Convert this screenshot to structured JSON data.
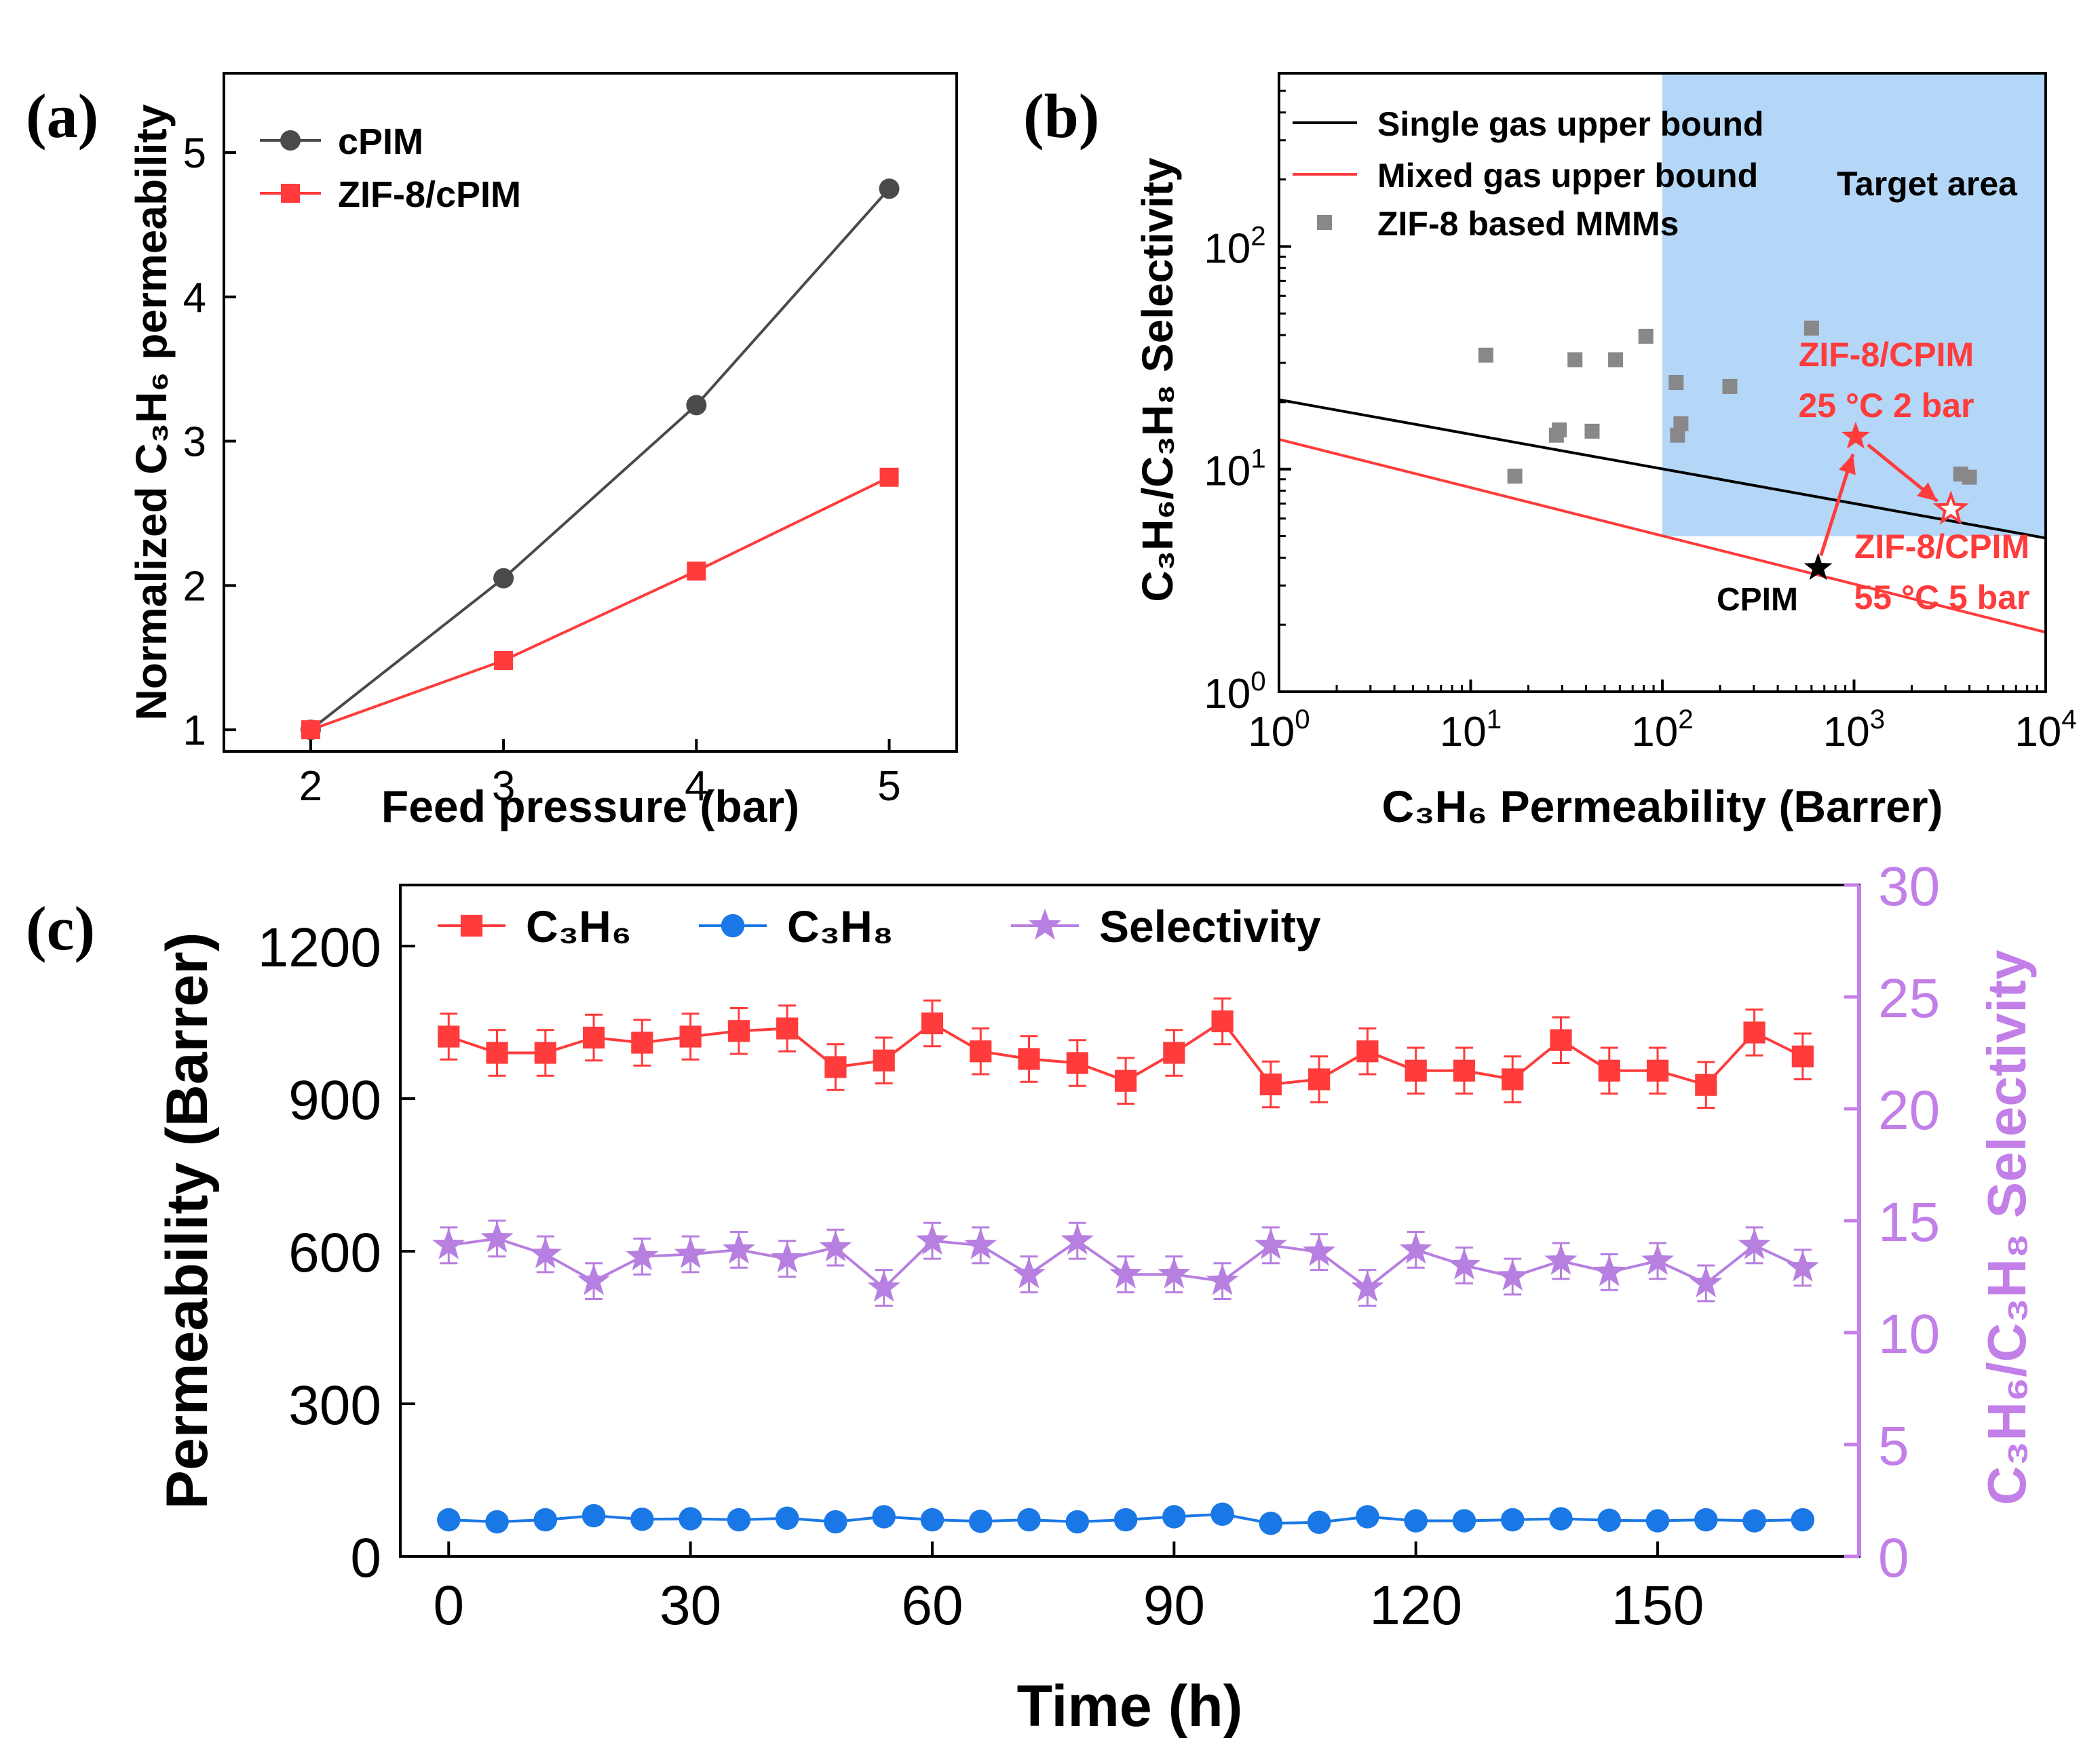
{
  "chart_data": [
    {
      "panel": "(a)",
      "type": "line",
      "xlabel": "Feed pressure (bar)",
      "ylabel": "Normalized C₃H₆ permeability",
      "xlim": [
        1.55,
        5.35
      ],
      "ylim": [
        0.85,
        5.55
      ],
      "x_ticks": [
        2,
        3,
        4,
        5
      ],
      "y_ticks": [
        1,
        2,
        3,
        4,
        5
      ],
      "legend": "top-left",
      "series": [
        {
          "name": "cPIM",
          "x": [
            2,
            3,
            4,
            5
          ],
          "values": [
            1.0,
            2.05,
            3.25,
            4.75
          ],
          "color": "#4a4a4a",
          "marker": "circle"
        },
        {
          "name": "ZIF-8/cPIM",
          "x": [
            2,
            3,
            4,
            5
          ],
          "values": [
            1.0,
            1.48,
            2.1,
            2.75
          ],
          "color": "#ff3b3b",
          "marker": "square"
        }
      ]
    },
    {
      "panel": "(b)",
      "type": "scatter",
      "xscale": "log",
      "yscale": "log",
      "xlabel": "C₃H₆ Permeability (Barrer)",
      "ylabel": "C₃H₆/C₃H₈ Selectivity",
      "xlim": [
        1,
        10000
      ],
      "ylim": [
        1,
        600
      ],
      "x_ticks": [
        {
          "base": "10",
          "exp": "0"
        },
        {
          "base": "10",
          "exp": "1"
        },
        {
          "base": "10",
          "exp": "2"
        },
        {
          "base": "10",
          "exp": "3"
        },
        {
          "base": "10",
          "exp": "4"
        }
      ],
      "y_ticks": [
        {
          "base": "10",
          "exp": "0"
        },
        {
          "base": "10",
          "exp": "1"
        },
        {
          "base": "10",
          "exp": "2"
        }
      ],
      "legend": "top-left",
      "legend_entries": [
        "Single gas upper bound",
        "Mixed gas upper bound",
        "ZIF-8 based MMMs"
      ],
      "target_area": {
        "label": "Target area",
        "x_from": 100,
        "x_to": 10000,
        "y_from": 5,
        "y_to": 600,
        "color": "#b4d6f7"
      },
      "upper_bounds": [
        {
          "name": "Single gas upper bound",
          "color": "#000000",
          "points": [
            [
              1,
              20.5
            ],
            [
              10000,
              4.9
            ]
          ]
        },
        {
          "name": "Mixed gas upper bound",
          "color": "#ff3b3b",
          "points": [
            [
              1,
              13.6
            ],
            [
              10000,
              1.85
            ]
          ]
        }
      ],
      "mmm_points": {
        "name": "ZIF-8 based MMMs",
        "color": "#888888",
        "x": [
          12,
          17,
          28,
          29,
          35,
          43,
          57,
          82,
          118,
          120,
          125,
          225,
          600,
          3600,
          4000
        ],
        "y": [
          32.5,
          9.3,
          14.2,
          15.0,
          31.0,
          14.8,
          31.0,
          39.5,
          24.5,
          14.2,
          16.0,
          23.5,
          43.0,
          9.5,
          9.2
        ]
      },
      "annotations": [
        {
          "text": "CPIM",
          "x": 650,
          "y": 3.6,
          "color": "#000000",
          "marker": "filled-star"
        },
        {
          "text": [
            "ZIF-8/CPIM",
            "25 °C 2 bar"
          ],
          "x": 1020,
          "y": 14.0,
          "color": "#ff3b3b",
          "marker": "filled-star"
        },
        {
          "text": [
            "ZIF-8/CPIM",
            "55 °C 5 bar"
          ],
          "x": 3200,
          "y": 6.6,
          "color": "#ff3b3b",
          "marker": "open-star"
        }
      ]
    },
    {
      "panel": "(c)",
      "type": "line",
      "xlabel": "Time (h)",
      "ylabel": "Permeability (Barrer)",
      "y2label": "C₃H₆/C₃H₈ Selectivity",
      "xlim": [
        -6,
        175
      ],
      "ylim": [
        0,
        1320
      ],
      "y2lim": [
        0,
        30
      ],
      "x_ticks": [
        0,
        30,
        60,
        90,
        120,
        150
      ],
      "y_ticks": [
        0,
        300,
        600,
        900,
        1200
      ],
      "y2_ticks": [
        0,
        5,
        10,
        15,
        20,
        25,
        30
      ],
      "legend": "top",
      "x": [
        0,
        6,
        12,
        18,
        24,
        30,
        36,
        42,
        48,
        54,
        60,
        66,
        72,
        78,
        84,
        90,
        96,
        102,
        108,
        114,
        120,
        126,
        132,
        138,
        144,
        150,
        156,
        162,
        168
      ],
      "series": [
        {
          "name": "C₃H₆",
          "axis": "left",
          "color": "#ff3b3b",
          "marker": "square",
          "error": 45,
          "values": [
            1022,
            990,
            990,
            1020,
            1010,
            1022,
            1033,
            1038,
            962,
            975,
            1048,
            993,
            978,
            970,
            935,
            990,
            1052,
            928,
            938,
            993,
            955,
            955,
            938,
            1015,
            955,
            955,
            927,
            1030,
            983
          ]
        },
        {
          "name": "C₃H₈",
          "axis": "left",
          "color": "#1a78e6",
          "marker": "circle",
          "values": [
            72,
            68,
            72,
            80,
            73,
            74,
            72,
            75,
            68,
            78,
            72,
            69,
            72,
            68,
            72,
            78,
            83,
            65,
            67,
            78,
            70,
            70,
            72,
            74,
            71,
            70,
            72,
            70,
            72
          ]
        },
        {
          "name": "Selectivity",
          "axis": "right",
          "color": "#b77fe0",
          "marker": "star",
          "error": 0.8,
          "values": [
            13.9,
            14.2,
            13.5,
            12.3,
            13.4,
            13.5,
            13.7,
            13.3,
            13.8,
            12.0,
            14.1,
            13.9,
            12.6,
            14.1,
            12.6,
            12.6,
            12.3,
            13.9,
            13.6,
            12.0,
            13.7,
            13.0,
            12.5,
            13.2,
            12.7,
            13.2,
            12.2,
            13.9,
            12.9
          ]
        }
      ]
    }
  ],
  "panel_labels": {
    "a": "(a)",
    "b": "(b)",
    "c": "(c)"
  },
  "text": {
    "a_xlabel": "Feed pressure (bar)",
    "a_ylabel": "Normalized C₃H₆ permeability",
    "b_xlabel": "C₃H₆ Permeability (Barrer)",
    "b_ylabel": "C₃H₆/C₃H₈ Selectivity",
    "c_xlabel": "Time (h)",
    "c_ylabel": "Permeability (Barrer)",
    "c_y2label": "C₃H₆/C₃H₈ Selectivity"
  },
  "colors": {
    "gray": "#4a4a4a",
    "red": "#ff3b3b",
    "blue": "#1a78e6",
    "purple": "#b77fe0",
    "target": "#b4d6f7",
    "mmm": "#888888"
  }
}
